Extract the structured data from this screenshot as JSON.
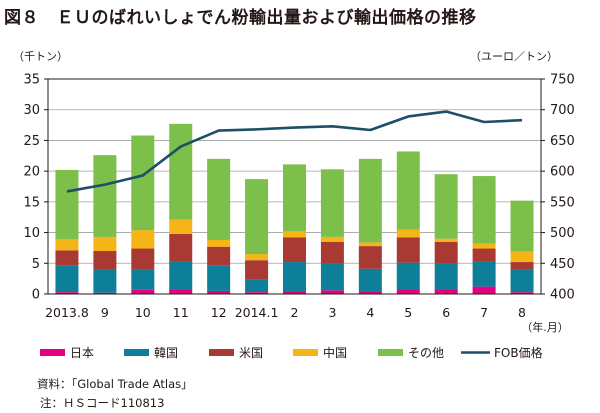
{
  "title": "図８　ＥＵのばれいしょでん粉輸出量および輸出価格の推移",
  "source": "資料：「Global Trade Atlas」",
  "note": "注：ＨＳコード110813",
  "chart_data": {
    "type": "bar",
    "stacked": true,
    "categories": [
      "2013.8",
      "9",
      "10",
      "11",
      "12",
      "2014.1",
      "2",
      "3",
      "4",
      "5",
      "6",
      "7",
      "8"
    ],
    "series": [
      {
        "name": "日本",
        "color": "#e4007f",
        "values": [
          0.3,
          0.2,
          0.7,
          0.8,
          0.5,
          0.3,
          0.4,
          0.6,
          0.4,
          0.8,
          0.8,
          1.2,
          0.3
        ]
      },
      {
        "name": "韓国",
        "color": "#0e7f98",
        "values": [
          4.3,
          3.8,
          3.3,
          4.5,
          4.1,
          2.0,
          4.8,
          4.4,
          3.7,
          4.3,
          4.1,
          4.1,
          3.7
        ]
      },
      {
        "name": "米国",
        "color": "#a93a33",
        "values": [
          2.5,
          3.0,
          3.4,
          4.5,
          3.1,
          3.2,
          4.0,
          3.5,
          3.7,
          4.1,
          3.6,
          2.1,
          1.2
        ]
      },
      {
        "name": "中国",
        "color": "#f6b517",
        "values": [
          1.8,
          2.3,
          3.0,
          2.3,
          1.1,
          1.0,
          1.0,
          0.8,
          0.6,
          1.3,
          0.5,
          0.8,
          1.7
        ]
      },
      {
        "name": "その他",
        "color": "#7cbf4a",
        "values": [
          11.3,
          13.3,
          15.4,
          15.6,
          13.2,
          12.2,
          10.9,
          11.0,
          13.6,
          12.7,
          10.5,
          11.0,
          8.3
        ]
      }
    ],
    "line": {
      "name": "FOB価格",
      "color": "#1e4f66",
      "values": [
        567,
        578,
        593,
        640,
        666,
        668,
        671,
        673,
        667,
        689,
        697,
        680,
        683
      ]
    },
    "y_left": {
      "label": "（千トン）",
      "min": 0,
      "max": 35,
      "ticks": [
        0,
        5,
        10,
        15,
        20,
        25,
        30,
        35
      ]
    },
    "y_right": {
      "label": "（ユーロ／トン）",
      "min": 400,
      "max": 750,
      "ticks": [
        400,
        450,
        500,
        550,
        600,
        650,
        700,
        750
      ]
    },
    "x_unit": "（年.月）",
    "grid": true,
    "legend_position": "bottom"
  }
}
